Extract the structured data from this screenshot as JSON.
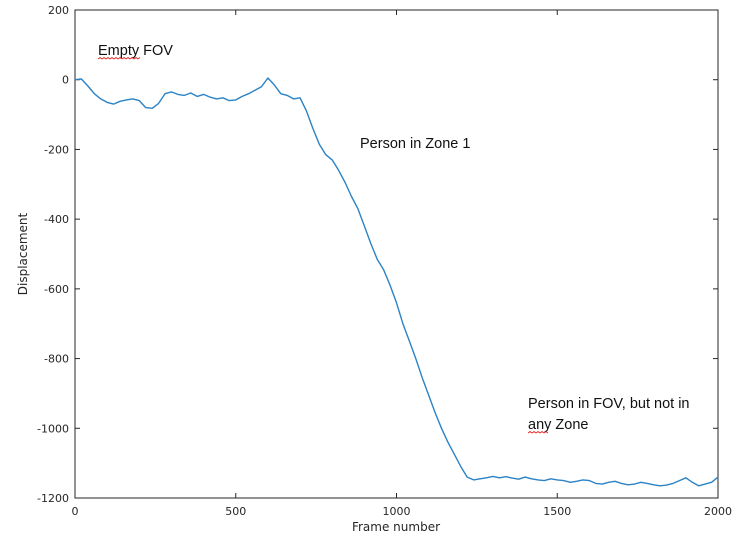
{
  "chart_data": {
    "type": "line",
    "title": "",
    "xlabel": "Frame number",
    "ylabel": "Displacement",
    "xlim": [
      0,
      2000
    ],
    "ylim": [
      -1200,
      200
    ],
    "xticks": [
      0,
      500,
      1000,
      1500,
      2000
    ],
    "yticks": [
      200,
      0,
      -200,
      -400,
      -600,
      -800,
      -1000,
      -1200
    ],
    "grid": false,
    "line_color": "#2b83c6",
    "series": [
      {
        "x": [
          0,
          20,
          40,
          60,
          80,
          100,
          120,
          140,
          160,
          180,
          200,
          220,
          240,
          260,
          280,
          300,
          320,
          340,
          360,
          380,
          400,
          420,
          440,
          460,
          480,
          500,
          520,
          540,
          560,
          580,
          600,
          620,
          640,
          660,
          680,
          700,
          720,
          740,
          760,
          780,
          800,
          820,
          840,
          860,
          880,
          900,
          920,
          940,
          960,
          980,
          1000,
          1020,
          1040,
          1060,
          1080,
          1100,
          1120,
          1140,
          1160,
          1180,
          1200,
          1220,
          1240,
          1260,
          1280,
          1300,
          1320,
          1340,
          1360,
          1380,
          1400,
          1420,
          1440,
          1460,
          1480,
          1500,
          1520,
          1540,
          1560,
          1580,
          1600,
          1620,
          1640,
          1660,
          1680,
          1700,
          1720,
          1740,
          1760,
          1780,
          1800,
          1820,
          1840,
          1860,
          1880,
          1900,
          1920,
          1940,
          1960,
          1980,
          2000
        ],
        "y": [
          0,
          2,
          -18,
          -40,
          -55,
          -65,
          -70,
          -62,
          -58,
          -55,
          -60,
          -80,
          -82,
          -68,
          -40,
          -35,
          -42,
          -45,
          -38,
          -48,
          -42,
          -50,
          -55,
          -52,
          -60,
          -58,
          -48,
          -40,
          -30,
          -20,
          5,
          -15,
          -40,
          -45,
          -55,
          -52,
          -90,
          -140,
          -185,
          -215,
          -230,
          -260,
          -295,
          -335,
          -370,
          -420,
          -470,
          -515,
          -545,
          -590,
          -640,
          -700,
          -750,
          -800,
          -855,
          -905,
          -955,
          -1000,
          -1040,
          -1075,
          -1110,
          -1140,
          -1148,
          -1145,
          -1142,
          -1138,
          -1142,
          -1139,
          -1143,
          -1146,
          -1140,
          -1145,
          -1148,
          -1150,
          -1145,
          -1148,
          -1150,
          -1155,
          -1152,
          -1148,
          -1150,
          -1158,
          -1160,
          -1155,
          -1152,
          -1158,
          -1162,
          -1160,
          -1155,
          -1158,
          -1162,
          -1165,
          -1163,
          -1158,
          -1150,
          -1142,
          -1155,
          -1165,
          -1160,
          -1155,
          -1140
        ]
      }
    ],
    "annotations": [
      {
        "text": "Empty FOV"
      },
      {
        "text": "Person in Zone 1"
      },
      {
        "text": "Person in FOV, but not in"
      },
      {
        "text": "any Zone"
      }
    ]
  }
}
